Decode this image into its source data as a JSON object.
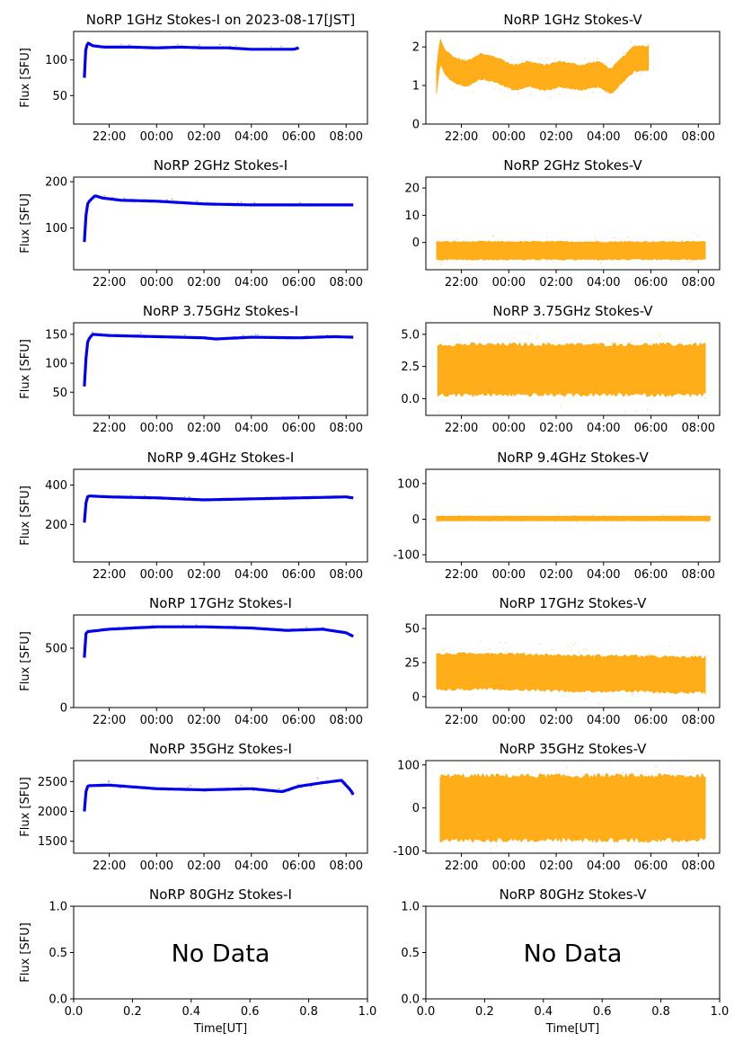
{
  "page": {
    "time_axis_label": "Time[UT]",
    "flux_axis_label": "Flux [SFU]",
    "no_data_text": "No Data",
    "colors": {
      "stokes_i": "#0000ee",
      "stokes_v": "#ffa500",
      "axis": "#000000"
    }
  },
  "chart_data": [
    {
      "id": "p1i",
      "type": "scatter",
      "title": "NoRP 1GHz Stokes-I on 2023-08-17[JST]",
      "ylabel": "Flux [SFU]",
      "xlabel": "",
      "ylim": [
        10,
        140
      ],
      "yticks": [
        50,
        100
      ],
      "xlim": [
        -3.5,
        8.9
      ],
      "xticks": [
        "22:00",
        "00:00",
        "02:00",
        "04:00",
        "06:00",
        "08:00"
      ],
      "xtick_values": [
        -2,
        0,
        2,
        4,
        6,
        8
      ],
      "series": [
        {
          "color": "#0000ee",
          "x": [
            -3.05,
            -3.02,
            -2.98,
            -2.9,
            -2.7,
            -2.2,
            -1,
            0,
            1,
            2,
            3,
            4,
            5,
            5.8,
            6.0
          ],
          "y": [
            75,
            105,
            118,
            124,
            120,
            118,
            118,
            117,
            118,
            117,
            117,
            115,
            115,
            115,
            117
          ]
        }
      ]
    },
    {
      "id": "p1v",
      "type": "scatter",
      "title": "NoRP 1GHz Stokes-V",
      "ylabel": "",
      "xlabel": "",
      "ylim": [
        0,
        2.4
      ],
      "yticks": [
        0,
        1,
        2
      ],
      "xlim": [
        -3.5,
        8.9
      ],
      "xticks": [
        "22:00",
        "00:00",
        "02:00",
        "04:00",
        "06:00",
        "08:00"
      ],
      "xtick_values": [
        -2,
        0,
        2,
        4,
        6,
        8
      ],
      "series": [
        {
          "color": "#ffa500",
          "x": [
            -3.05,
            -2.9,
            -2.7,
            -2.3,
            -1.8,
            -1.2,
            -0.5,
            0.2,
            0.8,
            1.5,
            2.2,
            3.0,
            3.8,
            4.3,
            4.8,
            5.3,
            5.9
          ],
          "y": [
            1.1,
            1.9,
            1.6,
            1.4,
            1.3,
            1.5,
            1.4,
            1.2,
            1.3,
            1.2,
            1.3,
            1.2,
            1.3,
            1.1,
            1.4,
            1.7,
            1.7
          ],
          "spread": 0.35
        }
      ]
    },
    {
      "id": "p2i",
      "type": "scatter",
      "title": "NoRP 2GHz Stokes-I",
      "ylabel": "Flux [SFU]",
      "xlabel": "",
      "ylim": [
        10,
        210
      ],
      "yticks": [
        100,
        200
      ],
      "xlim": [
        -3.5,
        8.9
      ],
      "xticks": [
        "22:00",
        "00:00",
        "02:00",
        "04:00",
        "06:00",
        "08:00"
      ],
      "xtick_values": [
        -2,
        0,
        2,
        4,
        6,
        8
      ],
      "series": [
        {
          "color": "#0000ee",
          "x": [
            -3.05,
            -3.0,
            -2.9,
            -2.6,
            -2.3,
            -1.5,
            0,
            2,
            4,
            6,
            7.5,
            8.2,
            8.3
          ],
          "y": [
            70,
            120,
            155,
            170,
            165,
            160,
            158,
            152,
            150,
            150,
            150,
            150,
            150
          ]
        }
      ]
    },
    {
      "id": "p2v",
      "type": "scatter",
      "title": "NoRP 2GHz Stokes-V",
      "ylabel": "",
      "xlabel": "",
      "ylim": [
        -10,
        24
      ],
      "yticks": [
        0,
        10,
        20
      ],
      "xlim": [
        -3.5,
        8.9
      ],
      "xticks": [
        "22:00",
        "00:00",
        "02:00",
        "04:00",
        "06:00",
        "08:00"
      ],
      "xtick_values": [
        -2,
        0,
        2,
        4,
        6,
        8
      ],
      "series": [
        {
          "color": "#ffa500",
          "x": [
            -3.05,
            -1,
            1,
            3,
            5,
            7,
            8.3
          ],
          "y": [
            -3,
            -3,
            -3,
            -3,
            -3,
            -3,
            -3
          ],
          "spread": 3.5
        }
      ]
    },
    {
      "id": "p3i",
      "type": "scatter",
      "title": "NoRP 3.75GHz Stokes-I",
      "ylabel": "Flux [SFU]",
      "xlabel": "",
      "ylim": [
        10,
        170
      ],
      "yticks": [
        50,
        100,
        150
      ],
      "xlim": [
        -3.5,
        8.9
      ],
      "xticks": [
        "22:00",
        "00:00",
        "02:00",
        "04:00",
        "06:00",
        "08:00"
      ],
      "xtick_values": [
        -2,
        0,
        2,
        4,
        6,
        8
      ],
      "series": [
        {
          "color": "#0000ee",
          "x": [
            -3.05,
            -3.0,
            -2.9,
            -2.7,
            -2,
            0,
            2,
            2.5,
            4,
            6,
            7.5,
            8.3
          ],
          "y": [
            60,
            100,
            140,
            150,
            148,
            146,
            144,
            142,
            145,
            144,
            146,
            145
          ]
        }
      ]
    },
    {
      "id": "p3v",
      "type": "scatter",
      "title": "NoRP 3.75GHz Stokes-V",
      "ylabel": "",
      "xlabel": "",
      "ylim": [
        -1.3,
        5.9
      ],
      "yticks": [
        0.0,
        2.5,
        5.0
      ],
      "xlim": [
        -3.5,
        8.9
      ],
      "xticks": [
        "22:00",
        "00:00",
        "02:00",
        "04:00",
        "06:00",
        "08:00"
      ],
      "xtick_values": [
        -2,
        0,
        2,
        4,
        6,
        8
      ],
      "series": [
        {
          "color": "#ffa500",
          "x": [
            -3.0,
            8.3
          ],
          "y": [
            2.25,
            2.25
          ],
          "spread": 2.1
        }
      ]
    },
    {
      "id": "p4i",
      "type": "scatter",
      "title": "NoRP 9.4GHz Stokes-I",
      "ylabel": "Flux [SFU]",
      "xlabel": "",
      "ylim": [
        10,
        480
      ],
      "yticks": [
        200,
        400
      ],
      "xlim": [
        -3.5,
        8.9
      ],
      "xticks": [
        "22:00",
        "00:00",
        "02:00",
        "04:00",
        "06:00",
        "08:00"
      ],
      "xtick_values": [
        -2,
        0,
        2,
        4,
        6,
        8
      ],
      "series": [
        {
          "color": "#0000ee",
          "x": [
            -3.05,
            -3.0,
            -2.9,
            -2,
            0,
            2,
            4,
            6,
            8,
            8.3
          ],
          "y": [
            210,
            300,
            345,
            340,
            335,
            325,
            330,
            335,
            340,
            335
          ]
        }
      ]
    },
    {
      "id": "p4v",
      "type": "scatter",
      "title": "NoRP 9.4GHz Stokes-V",
      "ylabel": "",
      "xlabel": "",
      "ylim": [
        -120,
        140
      ],
      "yticks": [
        -100,
        0,
        100
      ],
      "xlim": [
        -3.5,
        8.9
      ],
      "xticks": [
        "22:00",
        "00:00",
        "02:00",
        "04:00",
        "06:00",
        "08:00"
      ],
      "xtick_values": [
        -2,
        0,
        2,
        4,
        6,
        8
      ],
      "series": [
        {
          "color": "#ffa500",
          "x": [
            -3.05,
            8.5
          ],
          "y": [
            2,
            2
          ],
          "spread": 7
        }
      ]
    },
    {
      "id": "p5i",
      "type": "scatter",
      "title": "NoRP 17GHz Stokes-I",
      "ylabel": "Flux [SFU]",
      "xlabel": "",
      "ylim": [
        0,
        780
      ],
      "yticks": [
        0,
        500
      ],
      "xlim": [
        -3.5,
        8.9
      ],
      "xticks": [
        "22:00",
        "00:00",
        "02:00",
        "04:00",
        "06:00",
        "08:00"
      ],
      "xtick_values": [
        -2,
        0,
        2,
        4,
        6,
        8
      ],
      "series": [
        {
          "color": "#0000ee",
          "x": [
            -3.05,
            -3.0,
            -2.9,
            -2,
            0,
            2,
            4,
            5.5,
            7,
            8,
            8.3
          ],
          "y": [
            420,
            620,
            640,
            660,
            680,
            680,
            670,
            650,
            660,
            630,
            600
          ]
        }
      ]
    },
    {
      "id": "p5v",
      "type": "scatter",
      "title": "NoRP 17GHz Stokes-V",
      "ylabel": "",
      "xlabel": "",
      "ylim": [
        -8,
        60
      ],
      "yticks": [
        0,
        25,
        50
      ],
      "xlim": [
        -3.5,
        8.9
      ],
      "xticks": [
        "22:00",
        "00:00",
        "02:00",
        "04:00",
        "06:00",
        "08:00"
      ],
      "xtick_values": [
        -2,
        0,
        2,
        4,
        6,
        8
      ],
      "series": [
        {
          "color": "#ffa500",
          "x": [
            -3.05,
            -1,
            1,
            3,
            5,
            7,
            8.3
          ],
          "y": [
            18,
            19,
            18,
            17,
            17,
            16,
            16
          ],
          "spread": 14
        }
      ]
    },
    {
      "id": "p6i",
      "type": "scatter",
      "title": "NoRP 35GHz Stokes-I",
      "ylabel": "Flux [SFU]",
      "xlabel": "",
      "ylim": [
        1300,
        2850
      ],
      "yticks": [
        1500,
        2000,
        2500
      ],
      "xlim": [
        -3.5,
        8.9
      ],
      "xticks": [
        "22:00",
        "00:00",
        "02:00",
        "04:00",
        "06:00",
        "08:00"
      ],
      "xtick_values": [
        -2,
        0,
        2,
        4,
        6,
        8
      ],
      "series": [
        {
          "color": "#0000ee",
          "x": [
            -3.05,
            -3.0,
            -2.9,
            -2,
            0,
            2,
            4,
            5.3,
            6,
            7,
            7.8,
            8.2,
            8.3
          ],
          "y": [
            2000,
            2300,
            2430,
            2440,
            2380,
            2360,
            2380,
            2330,
            2420,
            2480,
            2520,
            2350,
            2280
          ]
        }
      ]
    },
    {
      "id": "p6v",
      "type": "scatter",
      "title": "NoRP 35GHz Stokes-V",
      "ylabel": "",
      "xlabel": "",
      "ylim": [
        -105,
        110
      ],
      "yticks": [
        -100,
        0,
        100
      ],
      "xlim": [
        -3.5,
        8.9
      ],
      "xticks": [
        "22:00",
        "00:00",
        "02:00",
        "04:00",
        "06:00",
        "08:00"
      ],
      "xtick_values": [
        -2,
        0,
        2,
        4,
        6,
        8
      ],
      "series": [
        {
          "color": "#ffa500",
          "x": [
            -2.9,
            8.3
          ],
          "y": [
            0,
            0
          ],
          "spread": 80
        }
      ]
    },
    {
      "id": "p7i",
      "type": "scatter",
      "title": "NoRP 80GHz Stokes-I",
      "ylabel": "Flux [SFU]",
      "xlabel": "Time[UT]",
      "ylim": [
        0,
        1
      ],
      "yticks": [
        0.0,
        0.5,
        1.0
      ],
      "xlim": [
        0,
        1
      ],
      "xticks": [
        "0.0",
        "0.2",
        "0.4",
        "0.6",
        "0.8",
        "1.0"
      ],
      "xtick_values": [
        0,
        0.2,
        0.4,
        0.6,
        0.8,
        1.0
      ],
      "annotation": "No Data",
      "series": []
    },
    {
      "id": "p7v",
      "type": "scatter",
      "title": "NoRP 80GHz Stokes-V",
      "ylabel": "",
      "xlabel": "Time[UT]",
      "ylim": [
        0,
        1
      ],
      "yticks": [
        0.0,
        0.5,
        1.0
      ],
      "xlim": [
        0,
        1
      ],
      "xticks": [
        "0.0",
        "0.2",
        "0.4",
        "0.6",
        "0.8",
        "1.0"
      ],
      "xtick_values": [
        0,
        0.2,
        0.4,
        0.6,
        0.8,
        1.0
      ],
      "annotation": "No Data",
      "series": []
    }
  ]
}
